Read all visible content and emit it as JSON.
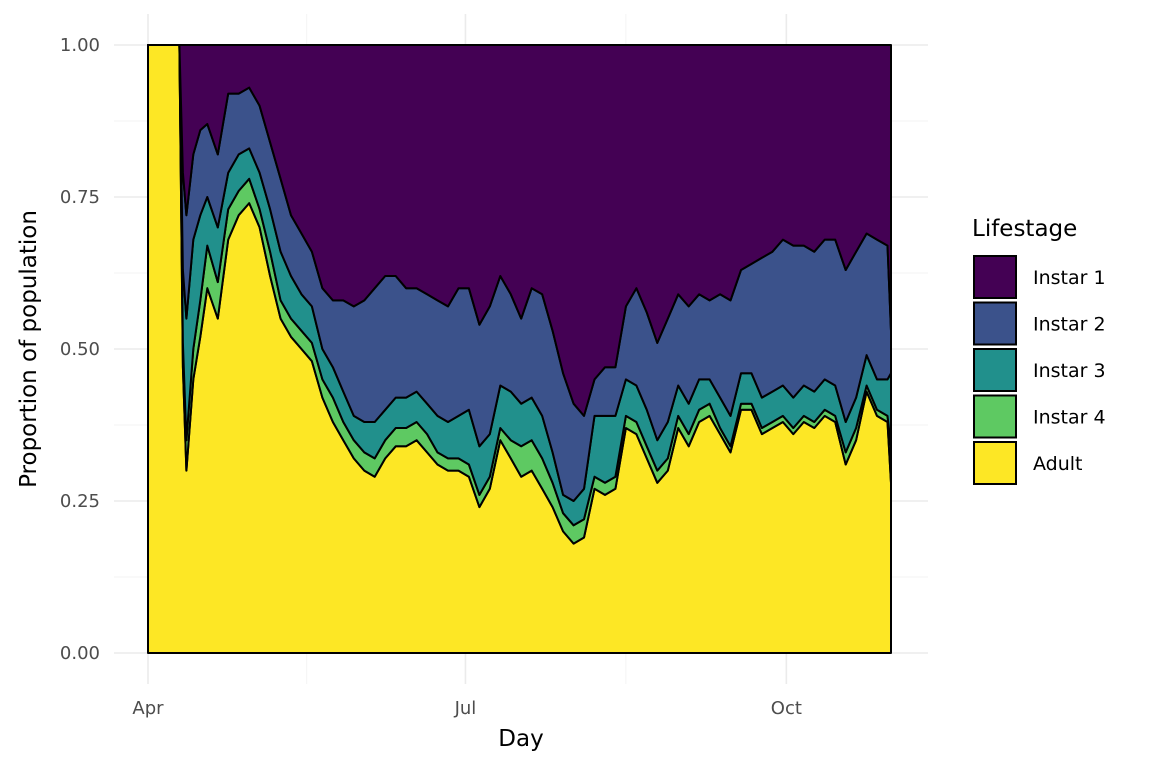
{
  "chart_data": {
    "type": "area",
    "stacked": true,
    "normalized": true,
    "title": "",
    "xlabel": "Day",
    "ylabel": "Proportion of population",
    "x_tick_labels": [
      "Apr",
      "Jul",
      "Oct"
    ],
    "x_tick_dates": [
      "2021-04-01",
      "2021-07-01",
      "2021-10-01"
    ],
    "xlim": [
      "2021-04-01",
      "2021-10-31"
    ],
    "y_ticks": [
      "0.00",
      "0.25",
      "0.50",
      "0.75",
      "1.00"
    ],
    "ylim": [
      0,
      1
    ],
    "grid": true,
    "legend": {
      "title": "Lifestage",
      "position": "right"
    },
    "x": [
      "2021-04-01",
      "2021-04-10",
      "2021-04-11",
      "2021-04-12",
      "2021-04-14",
      "2021-04-16",
      "2021-04-18",
      "2021-04-21",
      "2021-04-24",
      "2021-04-27",
      "2021-04-30",
      "2021-05-03",
      "2021-05-06",
      "2021-05-09",
      "2021-05-12",
      "2021-05-15",
      "2021-05-18",
      "2021-05-21",
      "2021-05-24",
      "2021-05-27",
      "2021-05-30",
      "2021-06-02",
      "2021-06-05",
      "2021-06-08",
      "2021-06-11",
      "2021-06-14",
      "2021-06-17",
      "2021-06-20",
      "2021-06-23",
      "2021-06-26",
      "2021-06-29",
      "2021-07-02",
      "2021-07-05",
      "2021-07-08",
      "2021-07-11",
      "2021-07-14",
      "2021-07-17",
      "2021-07-20",
      "2021-07-23",
      "2021-07-26",
      "2021-07-29",
      "2021-08-01",
      "2021-08-04",
      "2021-08-07",
      "2021-08-10",
      "2021-08-13",
      "2021-08-16",
      "2021-08-19",
      "2021-08-22",
      "2021-08-25",
      "2021-08-28",
      "2021-08-31",
      "2021-09-03",
      "2021-09-06",
      "2021-09-09",
      "2021-09-12",
      "2021-09-15",
      "2021-09-18",
      "2021-09-21",
      "2021-09-24",
      "2021-09-27",
      "2021-09-30",
      "2021-10-03",
      "2021-10-06",
      "2021-10-09",
      "2021-10-12",
      "2021-10-15",
      "2021-10-18",
      "2021-10-21",
      "2021-10-24",
      "2021-10-27",
      "2021-10-30",
      "2021-10-31"
    ],
    "series": [
      {
        "name": "Adult",
        "color": "#FDE725",
        "values": [
          1.0,
          1.0,
          0.47,
          0.3,
          0.45,
          0.52,
          0.6,
          0.55,
          0.68,
          0.72,
          0.74,
          0.7,
          0.62,
          0.55,
          0.52,
          0.5,
          0.48,
          0.42,
          0.38,
          0.35,
          0.32,
          0.3,
          0.29,
          0.32,
          0.34,
          0.34,
          0.35,
          0.33,
          0.31,
          0.3,
          0.3,
          0.29,
          0.24,
          0.27,
          0.35,
          0.32,
          0.29,
          0.3,
          0.27,
          0.24,
          0.2,
          0.18,
          0.19,
          0.27,
          0.26,
          0.27,
          0.37,
          0.36,
          0.32,
          0.28,
          0.3,
          0.37,
          0.34,
          0.38,
          0.39,
          0.36,
          0.33,
          0.4,
          0.4,
          0.36,
          0.37,
          0.38,
          0.36,
          0.38,
          0.37,
          0.39,
          0.38,
          0.31,
          0.35,
          0.43,
          0.39,
          0.38,
          0.28
        ]
      },
      {
        "name": "Instar 4",
        "color": "#5EC962",
        "values": [
          0.0,
          0.0,
          0.04,
          0.05,
          0.05,
          0.06,
          0.07,
          0.06,
          0.05,
          0.04,
          0.04,
          0.03,
          0.04,
          0.03,
          0.03,
          0.03,
          0.03,
          0.03,
          0.04,
          0.03,
          0.03,
          0.03,
          0.03,
          0.03,
          0.03,
          0.03,
          0.03,
          0.03,
          0.02,
          0.02,
          0.02,
          0.02,
          0.02,
          0.02,
          0.02,
          0.03,
          0.05,
          0.05,
          0.05,
          0.04,
          0.03,
          0.03,
          0.03,
          0.02,
          0.02,
          0.02,
          0.02,
          0.02,
          0.02,
          0.02,
          0.02,
          0.02,
          0.02,
          0.02,
          0.02,
          0.01,
          0.01,
          0.01,
          0.01,
          0.01,
          0.01,
          0.01,
          0.01,
          0.01,
          0.01,
          0.01,
          0.01,
          0.02,
          0.02,
          0.01,
          0.01,
          0.01,
          0.06
        ]
      },
      {
        "name": "Instar 3",
        "color": "#21908C",
        "values": [
          0.0,
          0.0,
          0.12,
          0.2,
          0.18,
          0.14,
          0.08,
          0.09,
          0.06,
          0.06,
          0.05,
          0.06,
          0.07,
          0.08,
          0.07,
          0.06,
          0.06,
          0.05,
          0.05,
          0.05,
          0.04,
          0.05,
          0.06,
          0.05,
          0.05,
          0.05,
          0.05,
          0.05,
          0.06,
          0.06,
          0.07,
          0.09,
          0.08,
          0.07,
          0.07,
          0.08,
          0.07,
          0.07,
          0.07,
          0.05,
          0.03,
          0.04,
          0.05,
          0.1,
          0.11,
          0.1,
          0.06,
          0.06,
          0.06,
          0.05,
          0.06,
          0.05,
          0.05,
          0.05,
          0.04,
          0.05,
          0.05,
          0.05,
          0.05,
          0.05,
          0.05,
          0.05,
          0.05,
          0.05,
          0.05,
          0.05,
          0.05,
          0.05,
          0.05,
          0.05,
          0.05,
          0.06,
          0.12
        ]
      },
      {
        "name": "Instar 2",
        "color": "#3B528B",
        "values": [
          0.0,
          0.0,
          0.16,
          0.17,
          0.14,
          0.14,
          0.12,
          0.12,
          0.13,
          0.1,
          0.1,
          0.11,
          0.11,
          0.12,
          0.1,
          0.1,
          0.09,
          0.1,
          0.11,
          0.15,
          0.18,
          0.2,
          0.22,
          0.22,
          0.2,
          0.18,
          0.17,
          0.18,
          0.19,
          0.19,
          0.21,
          0.2,
          0.2,
          0.21,
          0.18,
          0.16,
          0.14,
          0.18,
          0.2,
          0.2,
          0.2,
          0.16,
          0.12,
          0.06,
          0.08,
          0.08,
          0.12,
          0.16,
          0.16,
          0.16,
          0.17,
          0.15,
          0.16,
          0.14,
          0.13,
          0.17,
          0.19,
          0.17,
          0.18,
          0.23,
          0.23,
          0.24,
          0.25,
          0.23,
          0.23,
          0.23,
          0.24,
          0.25,
          0.24,
          0.2,
          0.23,
          0.22,
          0.07
        ]
      },
      {
        "name": "Instar 1",
        "color": "#440154",
        "values": [
          0.0,
          0.0,
          0.21,
          0.28,
          0.18,
          0.14,
          0.13,
          0.18,
          0.08,
          0.08,
          0.07,
          0.1,
          0.16,
          0.22,
          0.28,
          0.31,
          0.34,
          0.4,
          0.42,
          0.42,
          0.43,
          0.42,
          0.4,
          0.38,
          0.38,
          0.4,
          0.4,
          0.41,
          0.42,
          0.43,
          0.4,
          0.4,
          0.46,
          0.43,
          0.38,
          0.41,
          0.45,
          0.4,
          0.41,
          0.47,
          0.54,
          0.59,
          0.61,
          0.55,
          0.53,
          0.53,
          0.43,
          0.4,
          0.44,
          0.49,
          0.45,
          0.41,
          0.43,
          0.41,
          0.42,
          0.41,
          0.42,
          0.37,
          0.36,
          0.35,
          0.34,
          0.32,
          0.33,
          0.33,
          0.34,
          0.32,
          0.32,
          0.37,
          0.34,
          0.31,
          0.32,
          0.33,
          0.47
        ]
      }
    ]
  }
}
